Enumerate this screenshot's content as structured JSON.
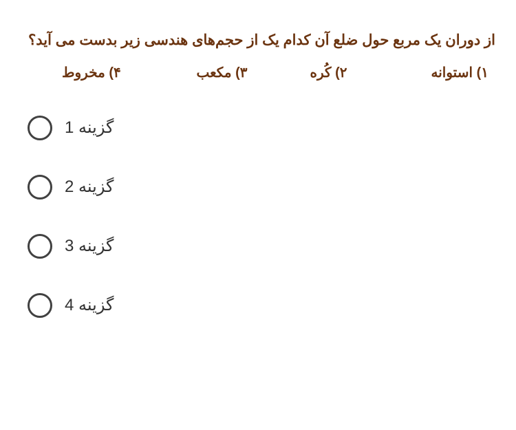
{
  "colors": {
    "question_text": "#6b3410",
    "option_text": "#333333",
    "radio_border": "#414141",
    "background": "#ffffff"
  },
  "typography": {
    "question_fontsize": 21,
    "question_fontweight": "bold",
    "answer_fontsize": 20,
    "answer_fontweight": "bold",
    "option_fontsize": 24
  },
  "question": {
    "text": "از دوران یک مربع حول ضلع آن کدام یک از حجم‌های هندسی زیر بدست می آید؟"
  },
  "answers": [
    {
      "num": "۱)",
      "label": "استوانه"
    },
    {
      "num": "۲)",
      "label": "کُره"
    },
    {
      "num": "۳)",
      "label": "مکعب"
    },
    {
      "num": "۴)",
      "label": "مخروط"
    }
  ],
  "options": [
    {
      "label": "گزینه 1"
    },
    {
      "label": "گزینه 2"
    },
    {
      "label": "گزینه 3"
    },
    {
      "label": "گزینه 4"
    }
  ]
}
